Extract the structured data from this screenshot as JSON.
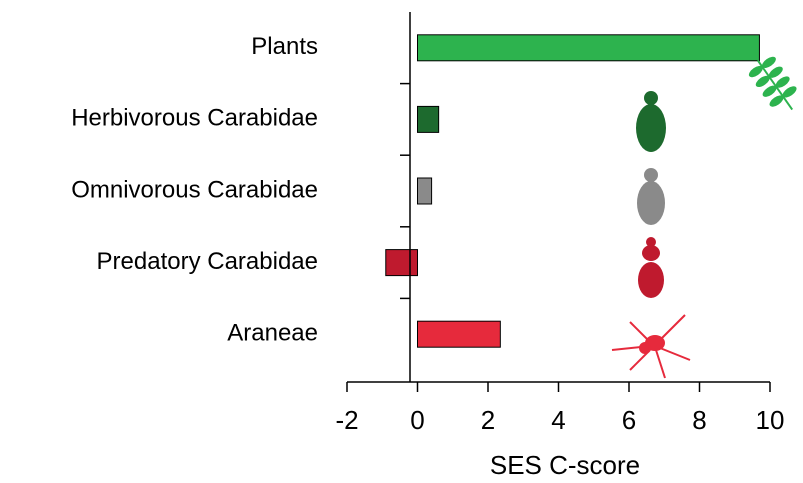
{
  "chart_data": {
    "type": "hbar",
    "categories": [
      "Plants",
      "Herbivorous Carabidae",
      "Omnivorous Carabidae",
      "Predatory Carabidae",
      "Araneae"
    ],
    "values": [
      9.7,
      0.6,
      0.4,
      -0.9,
      2.35
    ],
    "colors": [
      "#2db34e",
      "#1d6a2e",
      "#8a8a8a",
      "#bf1a2e",
      "#e62a3c"
    ],
    "xlabel": "SES C-score",
    "xlim": [
      -2,
      10
    ],
    "xticks": [
      -2,
      0,
      2,
      4,
      6,
      8,
      10
    ]
  }
}
